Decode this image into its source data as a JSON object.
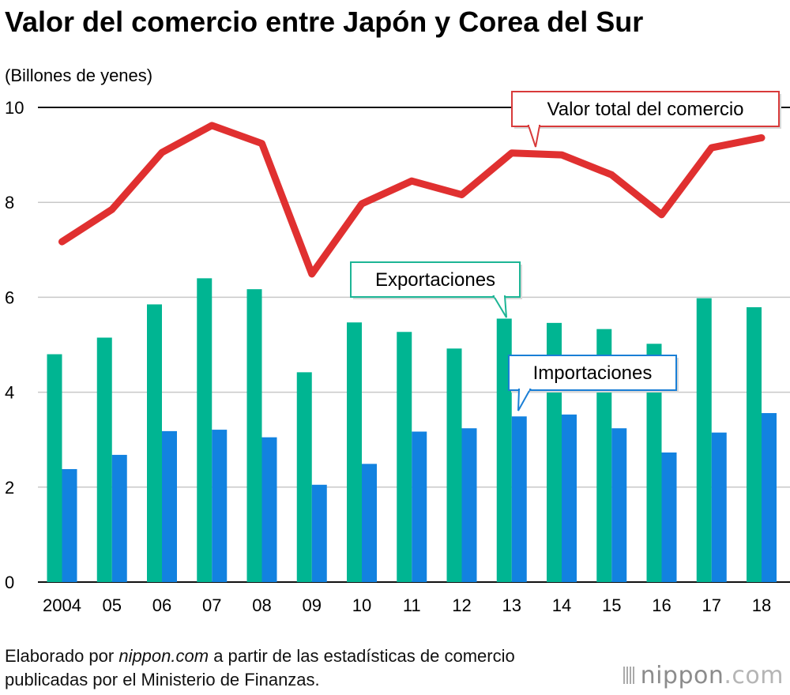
{
  "chart_data": {
    "type": "bar",
    "title": "Valor del comercio entre Japón y Corea del Sur",
    "unit_label": "(Billones de yenes)",
    "categories": [
      "2004",
      "05",
      "06",
      "07",
      "08",
      "09",
      "10",
      "11",
      "12",
      "13",
      "14",
      "15",
      "16",
      "17",
      "18"
    ],
    "ylim": [
      0,
      10
    ],
    "yticks": [
      "0",
      "2",
      "4",
      "6",
      "8",
      "10"
    ],
    "grid": true,
    "series": [
      {
        "name": "Exportaciones",
        "kind": "bar",
        "color": "#00b592",
        "values": [
          4.8,
          5.15,
          5.85,
          6.4,
          6.17,
          4.42,
          5.47,
          5.27,
          4.92,
          5.55,
          5.46,
          5.33,
          5.02,
          5.98,
          5.79
        ]
      },
      {
        "name": "Importaciones",
        "kind": "bar",
        "color": "#1282e0",
        "values": [
          2.38,
          2.68,
          3.18,
          3.21,
          3.05,
          2.05,
          2.49,
          3.17,
          3.24,
          3.49,
          3.53,
          3.24,
          2.73,
          3.15,
          3.56
        ]
      },
      {
        "name": "Valor total del comercio",
        "kind": "line",
        "color": "#e03030",
        "values": [
          7.17,
          7.85,
          9.05,
          9.62,
          9.24,
          6.49,
          7.97,
          8.45,
          8.16,
          9.04,
          9.0,
          8.58,
          7.74,
          9.15,
          9.36
        ]
      }
    ]
  },
  "source": {
    "prefix": "Elaborado por ",
    "site": "nippon.com",
    "rest": " a partir de las estadísticas de comercio publicadas por el Ministerio de Finanzas."
  },
  "brand": {
    "name": "nippon",
    "suffix": ".com"
  }
}
